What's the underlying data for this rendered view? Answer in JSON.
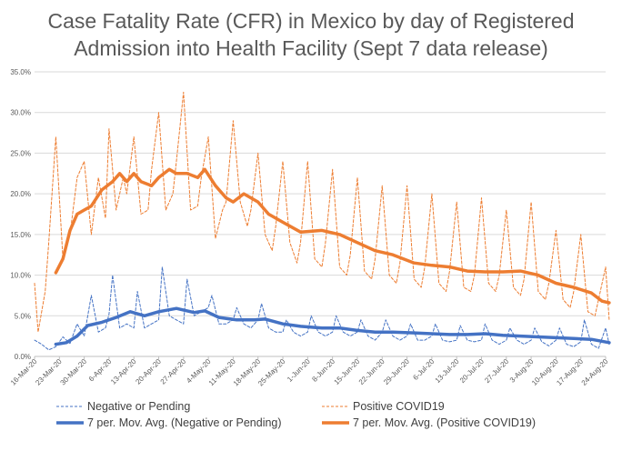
{
  "chart_data": {
    "type": "line",
    "title_lines": [
      "Case Fatality Rate (CFR) in Mexico by day of Registered",
      "Admission into Health Facility (Sept 7 data release)"
    ],
    "x_start": "2020-03-16",
    "x_end": "2020-08-24",
    "x_tick_labels": [
      "16-Mar-20",
      "23-Mar-20",
      "30-Mar-20",
      "6-Apr-20",
      "13-Apr-20",
      "20-Apr-20",
      "27-Apr-20",
      "4-May-20",
      "11-May-20",
      "18-May-20",
      "25-May-20",
      "1-Jun-20",
      "8-Jun-20",
      "15-Jun-20",
      "22-Jun-20",
      "29-Jun-20",
      "6-Jul-20",
      "13-Jul-20",
      "20-Jul-20",
      "27-Jul-20",
      "3-Aug-20",
      "10-Aug-20",
      "17-Aug-20",
      "24-Aug-20"
    ],
    "y_tick_labels": [
      "0.0%",
      "5.0%",
      "10.0%",
      "15.0%",
      "20.0%",
      "25.0%",
      "30.0%",
      "35.0%"
    ],
    "ylim": [
      0,
      35
    ],
    "y_unit": "percent",
    "grid": true,
    "legend_position": "bottom",
    "series": [
      {
        "name": "Negative or Pending",
        "style": "dashed-thin",
        "color": "#4472C4",
        "points": [
          [
            "2020-03-16",
            2.0
          ],
          [
            "2020-03-18",
            1.5
          ],
          [
            "2020-03-20",
            0.8
          ],
          [
            "2020-03-22",
            1.2
          ],
          [
            "2020-03-24",
            2.4
          ],
          [
            "2020-03-26",
            1.6
          ],
          [
            "2020-03-28",
            4.0
          ],
          [
            "2020-03-30",
            2.5
          ],
          [
            "2020-04-01",
            7.5
          ],
          [
            "2020-04-03",
            3.0
          ],
          [
            "2020-04-05",
            3.5
          ],
          [
            "2020-04-06",
            5.2
          ],
          [
            "2020-04-07",
            10.0
          ],
          [
            "2020-04-09",
            3.5
          ],
          [
            "2020-04-11",
            4.0
          ],
          [
            "2020-04-13",
            3.5
          ],
          [
            "2020-04-14",
            8.0
          ],
          [
            "2020-04-16",
            3.5
          ],
          [
            "2020-04-18",
            4.0
          ],
          [
            "2020-04-20",
            4.5
          ],
          [
            "2020-04-21",
            11.0
          ],
          [
            "2020-04-23",
            5.0
          ],
          [
            "2020-04-25",
            4.5
          ],
          [
            "2020-04-27",
            4.0
          ],
          [
            "2020-04-28",
            9.5
          ],
          [
            "2020-04-30",
            5.0
          ],
          [
            "2020-05-02",
            5.5
          ],
          [
            "2020-05-04",
            6.0
          ],
          [
            "2020-05-05",
            7.5
          ],
          [
            "2020-05-07",
            4.0
          ],
          [
            "2020-05-09",
            4.0
          ],
          [
            "2020-05-11",
            4.5
          ],
          [
            "2020-05-12",
            6.0
          ],
          [
            "2020-05-14",
            4.0
          ],
          [
            "2020-05-16",
            3.5
          ],
          [
            "2020-05-18",
            4.5
          ],
          [
            "2020-05-19",
            6.5
          ],
          [
            "2020-05-21",
            3.5
          ],
          [
            "2020-05-23",
            3.0
          ],
          [
            "2020-05-25",
            3.0
          ],
          [
            "2020-05-26",
            4.5
          ],
          [
            "2020-05-28",
            3.0
          ],
          [
            "2020-05-30",
            2.5
          ],
          [
            "2020-06-01",
            3.0
          ],
          [
            "2020-06-02",
            5.0
          ],
          [
            "2020-06-04",
            3.0
          ],
          [
            "2020-06-06",
            2.5
          ],
          [
            "2020-06-08",
            3.0
          ],
          [
            "2020-06-09",
            5.0
          ],
          [
            "2020-06-11",
            3.0
          ],
          [
            "2020-06-13",
            2.5
          ],
          [
            "2020-06-15",
            3.0
          ],
          [
            "2020-06-16",
            4.5
          ],
          [
            "2020-06-18",
            2.5
          ],
          [
            "2020-06-20",
            2.0
          ],
          [
            "2020-06-22",
            3.0
          ],
          [
            "2020-06-23",
            4.5
          ],
          [
            "2020-06-25",
            2.5
          ],
          [
            "2020-06-27",
            2.0
          ],
          [
            "2020-06-29",
            2.5
          ],
          [
            "2020-06-30",
            4.0
          ],
          [
            "2020-07-02",
            2.0
          ],
          [
            "2020-07-04",
            2.0
          ],
          [
            "2020-07-06",
            2.5
          ],
          [
            "2020-07-07",
            4.0
          ],
          [
            "2020-07-09",
            2.0
          ],
          [
            "2020-07-11",
            1.8
          ],
          [
            "2020-07-13",
            2.0
          ],
          [
            "2020-07-14",
            3.8
          ],
          [
            "2020-07-16",
            2.0
          ],
          [
            "2020-07-18",
            1.8
          ],
          [
            "2020-07-20",
            2.0
          ],
          [
            "2020-07-21",
            4.0
          ],
          [
            "2020-07-23",
            2.0
          ],
          [
            "2020-07-25",
            1.5
          ],
          [
            "2020-07-27",
            2.0
          ],
          [
            "2020-07-28",
            3.5
          ],
          [
            "2020-07-30",
            2.0
          ],
          [
            "2020-08-01",
            1.5
          ],
          [
            "2020-08-03",
            2.0
          ],
          [
            "2020-08-04",
            3.5
          ],
          [
            "2020-08-06",
            1.8
          ],
          [
            "2020-08-08",
            1.3
          ],
          [
            "2020-08-10",
            2.0
          ],
          [
            "2020-08-11",
            3.5
          ],
          [
            "2020-08-13",
            1.5
          ],
          [
            "2020-08-15",
            1.2
          ],
          [
            "2020-08-17",
            1.8
          ],
          [
            "2020-08-18",
            4.5
          ],
          [
            "2020-08-20",
            1.5
          ],
          [
            "2020-08-22",
            1.0
          ],
          [
            "2020-08-24",
            3.5
          ],
          [
            "2020-08-25",
            1.5
          ]
        ]
      },
      {
        "name": "Positive COVID19",
        "style": "dashed-thin",
        "color": "#ED7D31",
        "points": [
          [
            "2020-03-16",
            9.0
          ],
          [
            "2020-03-17",
            3.0
          ],
          [
            "2020-03-19",
            8.0
          ],
          [
            "2020-03-20",
            14.0
          ],
          [
            "2020-03-22",
            27.0
          ],
          [
            "2020-03-24",
            12.0
          ],
          [
            "2020-03-26",
            15.0
          ],
          [
            "2020-03-28",
            22.0
          ],
          [
            "2020-03-30",
            24.0
          ],
          [
            "2020-04-01",
            15.0
          ],
          [
            "2020-04-03",
            22.0
          ],
          [
            "2020-04-05",
            17.0
          ],
          [
            "2020-04-06",
            28.0
          ],
          [
            "2020-04-08",
            18.0
          ],
          [
            "2020-04-10",
            22.0
          ],
          [
            "2020-04-11",
            20.0
          ],
          [
            "2020-04-13",
            27.0
          ],
          [
            "2020-04-15",
            17.5
          ],
          [
            "2020-04-17",
            18.0
          ],
          [
            "2020-04-18",
            23.0
          ],
          [
            "2020-04-20",
            30.0
          ],
          [
            "2020-04-22",
            18.0
          ],
          [
            "2020-04-24",
            20.0
          ],
          [
            "2020-04-25",
            24.0
          ],
          [
            "2020-04-27",
            32.5
          ],
          [
            "2020-04-29",
            18.0
          ],
          [
            "2020-05-01",
            18.5
          ],
          [
            "2020-05-02",
            22.0
          ],
          [
            "2020-05-04",
            27.0
          ],
          [
            "2020-05-06",
            14.5
          ],
          [
            "2020-05-08",
            18.0
          ],
          [
            "2020-05-09",
            19.0
          ],
          [
            "2020-05-11",
            29.0
          ],
          [
            "2020-05-13",
            19.0
          ],
          [
            "2020-05-15",
            16.0
          ],
          [
            "2020-05-16",
            18.0
          ],
          [
            "2020-05-18",
            25.0
          ],
          [
            "2020-05-20",
            15.0
          ],
          [
            "2020-05-22",
            13.0
          ],
          [
            "2020-05-23",
            16.0
          ],
          [
            "2020-05-25",
            24.0
          ],
          [
            "2020-05-27",
            14.0
          ],
          [
            "2020-05-29",
            11.5
          ],
          [
            "2020-05-30",
            14.0
          ],
          [
            "2020-06-01",
            24.0
          ],
          [
            "2020-06-03",
            12.0
          ],
          [
            "2020-06-05",
            11.0
          ],
          [
            "2020-06-06",
            14.0
          ],
          [
            "2020-06-08",
            23.0
          ],
          [
            "2020-06-10",
            11.0
          ],
          [
            "2020-06-12",
            10.0
          ],
          [
            "2020-06-13",
            12.5
          ],
          [
            "2020-06-15",
            22.0
          ],
          [
            "2020-06-17",
            10.5
          ],
          [
            "2020-06-19",
            9.5
          ],
          [
            "2020-06-20",
            12.0
          ],
          [
            "2020-06-22",
            21.0
          ],
          [
            "2020-06-24",
            10.0
          ],
          [
            "2020-06-26",
            9.0
          ],
          [
            "2020-06-27",
            11.5
          ],
          [
            "2020-06-29",
            21.0
          ],
          [
            "2020-07-01",
            9.5
          ],
          [
            "2020-07-03",
            8.5
          ],
          [
            "2020-07-04",
            11.0
          ],
          [
            "2020-07-06",
            20.0
          ],
          [
            "2020-07-08",
            9.0
          ],
          [
            "2020-07-10",
            8.0
          ],
          [
            "2020-07-11",
            10.5
          ],
          [
            "2020-07-13",
            19.0
          ],
          [
            "2020-07-15",
            8.5
          ],
          [
            "2020-07-17",
            8.0
          ],
          [
            "2020-07-18",
            10.0
          ],
          [
            "2020-07-20",
            19.5
          ],
          [
            "2020-07-22",
            9.0
          ],
          [
            "2020-07-24",
            8.0
          ],
          [
            "2020-07-25",
            10.0
          ],
          [
            "2020-07-27",
            18.0
          ],
          [
            "2020-07-29",
            8.5
          ],
          [
            "2020-07-31",
            7.5
          ],
          [
            "2020-08-01",
            9.5
          ],
          [
            "2020-08-03",
            19.0
          ],
          [
            "2020-08-05",
            8.0
          ],
          [
            "2020-08-07",
            7.0
          ],
          [
            "2020-08-08",
            9.0
          ],
          [
            "2020-08-10",
            15.5
          ],
          [
            "2020-08-12",
            7.0
          ],
          [
            "2020-08-14",
            6.0
          ],
          [
            "2020-08-15",
            8.0
          ],
          [
            "2020-08-17",
            15.0
          ],
          [
            "2020-08-19",
            5.5
          ],
          [
            "2020-08-21",
            5.0
          ],
          [
            "2020-08-22",
            7.0
          ],
          [
            "2020-08-24",
            11.0
          ],
          [
            "2020-08-25",
            4.5
          ]
        ]
      },
      {
        "name": "7 per. Mov. Avg. (Negative or Pending)",
        "style": "solid-thick",
        "color": "#4472C4",
        "points": [
          [
            "2020-03-22",
            1.5
          ],
          [
            "2020-03-25",
            1.7
          ],
          [
            "2020-03-28",
            2.5
          ],
          [
            "2020-03-31",
            3.8
          ],
          [
            "2020-04-04",
            4.2
          ],
          [
            "2020-04-08",
            4.8
          ],
          [
            "2020-04-12",
            5.5
          ],
          [
            "2020-04-16",
            5.0
          ],
          [
            "2020-04-20",
            5.5
          ],
          [
            "2020-04-25",
            5.9
          ],
          [
            "2020-04-30",
            5.4
          ],
          [
            "2020-05-03",
            5.6
          ],
          [
            "2020-05-07",
            4.8
          ],
          [
            "2020-05-12",
            4.5
          ],
          [
            "2020-05-17",
            4.5
          ],
          [
            "2020-05-20",
            4.6
          ],
          [
            "2020-05-25",
            4.0
          ],
          [
            "2020-05-30",
            3.7
          ],
          [
            "2020-06-05",
            3.5
          ],
          [
            "2020-06-10",
            3.5
          ],
          [
            "2020-06-15",
            3.2
          ],
          [
            "2020-06-20",
            3.0
          ],
          [
            "2020-06-25",
            3.0
          ],
          [
            "2020-07-01",
            2.9
          ],
          [
            "2020-07-06",
            2.8
          ],
          [
            "2020-07-11",
            2.7
          ],
          [
            "2020-07-16",
            2.7
          ],
          [
            "2020-07-21",
            2.8
          ],
          [
            "2020-07-26",
            2.6
          ],
          [
            "2020-07-31",
            2.5
          ],
          [
            "2020-08-05",
            2.4
          ],
          [
            "2020-08-10",
            2.3
          ],
          [
            "2020-08-15",
            2.2
          ],
          [
            "2020-08-20",
            2.1
          ],
          [
            "2020-08-25",
            1.7
          ]
        ]
      },
      {
        "name": "7 per. Mov. Avg. (Positive COVID19)",
        "style": "solid-thick",
        "color": "#ED7D31",
        "points": [
          [
            "2020-03-22",
            10.3
          ],
          [
            "2020-03-24",
            12.0
          ],
          [
            "2020-03-26",
            15.5
          ],
          [
            "2020-03-28",
            17.5
          ],
          [
            "2020-03-30",
            18.0
          ],
          [
            "2020-04-01",
            18.5
          ],
          [
            "2020-04-04",
            20.5
          ],
          [
            "2020-04-07",
            21.5
          ],
          [
            "2020-04-09",
            22.5
          ],
          [
            "2020-04-11",
            21.5
          ],
          [
            "2020-04-13",
            22.5
          ],
          [
            "2020-04-15",
            21.5
          ],
          [
            "2020-04-18",
            21.0
          ],
          [
            "2020-04-20",
            22.0
          ],
          [
            "2020-04-23",
            23.0
          ],
          [
            "2020-04-25",
            22.5
          ],
          [
            "2020-04-28",
            22.5
          ],
          [
            "2020-05-01",
            22.0
          ],
          [
            "2020-05-03",
            23.0
          ],
          [
            "2020-05-06",
            21.0
          ],
          [
            "2020-05-09",
            19.5
          ],
          [
            "2020-05-11",
            19.0
          ],
          [
            "2020-05-14",
            20.0
          ],
          [
            "2020-05-18",
            19.0
          ],
          [
            "2020-05-21",
            17.5
          ],
          [
            "2020-05-25",
            16.5
          ],
          [
            "2020-05-30",
            15.3
          ],
          [
            "2020-06-05",
            15.5
          ],
          [
            "2020-06-10",
            15.0
          ],
          [
            "2020-06-15",
            14.0
          ],
          [
            "2020-06-20",
            13.0
          ],
          [
            "2020-06-25",
            12.5
          ],
          [
            "2020-07-01",
            11.5
          ],
          [
            "2020-07-06",
            11.2
          ],
          [
            "2020-07-11",
            11.0
          ],
          [
            "2020-07-16",
            10.5
          ],
          [
            "2020-07-21",
            10.4
          ],
          [
            "2020-07-26",
            10.4
          ],
          [
            "2020-07-31",
            10.5
          ],
          [
            "2020-08-05",
            10.0
          ],
          [
            "2020-08-10",
            9.0
          ],
          [
            "2020-08-15",
            8.5
          ],
          [
            "2020-08-20",
            7.8
          ],
          [
            "2020-08-23",
            6.8
          ],
          [
            "2020-08-25",
            6.6
          ]
        ]
      }
    ]
  }
}
